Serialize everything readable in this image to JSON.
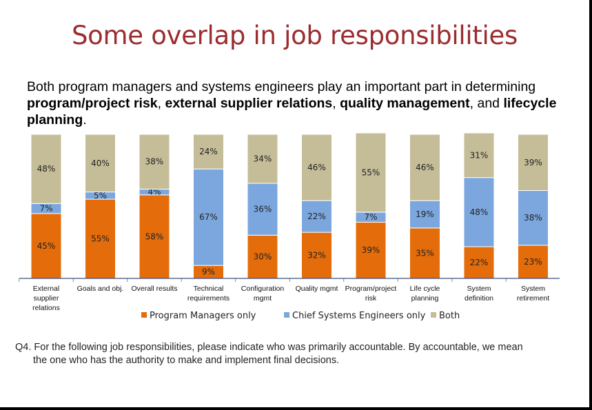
{
  "title": "Some overlap in job responsibilities",
  "intro": {
    "t1": "Both program managers and systems engineers play an important part in determining ",
    "b1": "program/project risk",
    "t2": ", ",
    "b2": "external supplier relations",
    "t3": ", ",
    "b3": "quality management",
    "t4": ", and ",
    "b4": "lifecycle planning",
    "t5": "."
  },
  "question": {
    "line1": "Q4.  For the following job responsibilities, please indicate who was primarily accountable. By accountable, we mean",
    "line2": "the one who has the authority to make and implement final decisions."
  },
  "chart_data": {
    "type": "bar",
    "stacked": true,
    "categories": [
      "External supplier relations",
      "Goals and obj.",
      "Overall results",
      "Technical requirements",
      "Configuration mgmt",
      "Quality mgmt",
      "Program/project risk",
      "Life cycle planning",
      "System definition",
      "System retirement"
    ],
    "category_lines": [
      [
        "External",
        "supplier",
        "relations"
      ],
      [
        "Goals and obj."
      ],
      [
        "Overall results"
      ],
      [
        "Technical",
        "requirements"
      ],
      [
        "Configuration",
        "mgmt"
      ],
      [
        "Quality mgmt"
      ],
      [
        "Program/project",
        "risk"
      ],
      [
        "Life cycle",
        "planning"
      ],
      [
        "System",
        "definition"
      ],
      [
        "System",
        "retirement"
      ]
    ],
    "series": [
      {
        "name": "Program Managers only",
        "color": "#E46C0A",
        "values": [
          45,
          55,
          58,
          9,
          30,
          32,
          39,
          35,
          22,
          23
        ]
      },
      {
        "name": "Chief Systems Engineers only",
        "color": "#7BA7DE",
        "values": [
          7,
          5,
          4,
          67,
          36,
          22,
          7,
          19,
          48,
          38
        ]
      },
      {
        "name": "Both",
        "color": "#C4BD97",
        "values": [
          48,
          40,
          38,
          24,
          34,
          46,
          55,
          46,
          31,
          39
        ]
      }
    ],
    "data_label_suffix": "%",
    "legend_position": "bottom",
    "grid": false
  }
}
